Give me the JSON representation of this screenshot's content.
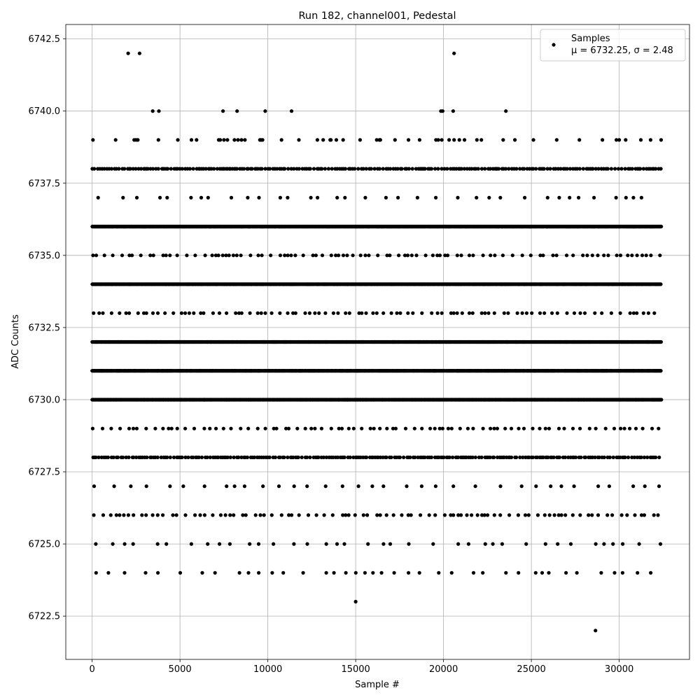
{
  "chart_data": {
    "type": "scatter",
    "title": "Run 182, channel001, Pedestal",
    "xlabel": "Sample #",
    "ylabel": "ADC Counts",
    "xlim": [
      -1500,
      34000
    ],
    "ylim": [
      6721,
      6743
    ],
    "xticks": [
      0,
      5000,
      10000,
      15000,
      20000,
      25000,
      30000
    ],
    "yticks": [
      6722.5,
      6725.0,
      6727.5,
      6730.0,
      6732.5,
      6735.0,
      6737.5,
      6740.0,
      6742.5
    ],
    "xtick_labels": [
      "0",
      "5000",
      "10000",
      "15000",
      "20000",
      "25000",
      "30000"
    ],
    "ytick_labels": [
      "6722.5",
      "6725.0",
      "6727.5",
      "6730.0",
      "6732.5",
      "6735.0",
      "6737.5",
      "6740.0",
      "6742.5"
    ],
    "grid": true,
    "legend": {
      "placement": "top-right",
      "entries": [
        {
          "marker": "filled-circle",
          "line1": "Samples",
          "line2": "μ = 6732.25, σ = 2.48"
        }
      ]
    },
    "marker_color": "#000000",
    "series": [
      {
        "name": "Samples",
        "x_range": [
          0,
          32400
        ],
        "dense_levels": [
          6730,
          6731,
          6732,
          6734,
          6736
        ],
        "semi_dense_levels": [
          6728,
          6738
        ],
        "sparse_levels": [
          6726,
          6735,
          6733,
          6729
        ],
        "rare_levels": [
          6725,
          6724,
          6727,
          6737,
          6739
        ],
        "points": [
          [
            2050,
            6742
          ],
          [
            2700,
            6742
          ],
          [
            20600,
            6742
          ],
          [
            3450,
            6740
          ],
          [
            3800,
            6740
          ],
          [
            7450,
            6740
          ],
          [
            8250,
            6740
          ],
          [
            9850,
            6740
          ],
          [
            11350,
            6740
          ],
          [
            19850,
            6740
          ],
          [
            19950,
            6740
          ],
          [
            20550,
            6740
          ],
          [
            23550,
            6740
          ],
          [
            2500,
            6739
          ],
          [
            2600,
            6739
          ],
          [
            5650,
            6739
          ],
          [
            7200,
            6739
          ],
          [
            7500,
            6739
          ],
          [
            7700,
            6739
          ],
          [
            8100,
            6739
          ],
          [
            8300,
            6739
          ],
          [
            8500,
            6739
          ],
          [
            9550,
            6739
          ],
          [
            9700,
            6739
          ],
          [
            13150,
            6739
          ],
          [
            13550,
            6739
          ],
          [
            13900,
            6739
          ],
          [
            16200,
            6739
          ],
          [
            16350,
            6739
          ],
          [
            19700,
            6739
          ],
          [
            19900,
            6739
          ],
          [
            20600,
            6739
          ],
          [
            20900,
            6739
          ],
          [
            21900,
            6739
          ],
          [
            30000,
            6739
          ],
          [
            15000,
            6723
          ],
          [
            28650,
            6722
          ]
        ]
      }
    ]
  }
}
